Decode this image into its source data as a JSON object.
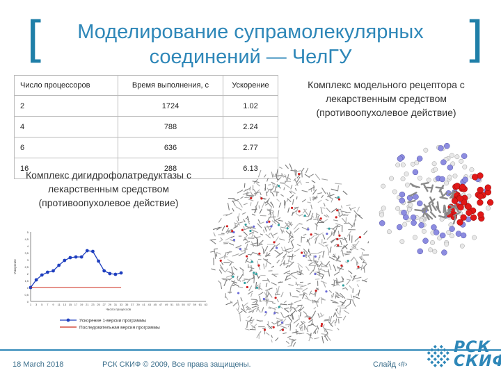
{
  "slide": {
    "title_line1": "Моделирование супрамолекулярных",
    "title_line2": "соединений — Чел",
    "title_line2_suffix": "ГУ",
    "bracket_left": "[",
    "bracket_right": "]"
  },
  "table": {
    "headers": [
      "Число процессоров",
      "Время выполнения, с",
      "Ускорение"
    ],
    "rows": [
      [
        "2",
        "1724",
        "1.02"
      ],
      [
        "4",
        "788",
        "2.24"
      ],
      [
        "6",
        "636",
        "2.77"
      ],
      [
        "16",
        "288",
        "6.13"
      ]
    ]
  },
  "captions": {
    "right": "Комплекс модельного рецептора с лекарственным средством (противоопухолевое действие)",
    "left": "Комплекс дигидрофолатредуктазы с лекарственным средством (противоопухолевое действие)"
  },
  "chart_data": {
    "type": "line",
    "title": "",
    "xlabel": "Число процессов",
    "ylabel": "Ускорение",
    "x": [
      2,
      4,
      6,
      8,
      10,
      12,
      14,
      16,
      18,
      20,
      22,
      24,
      26,
      28,
      30,
      32,
      34,
      36,
      38,
      40,
      42,
      44,
      46,
      48,
      50,
      52,
      54,
      56,
      58,
      60,
      62,
      64
    ],
    "x_ticks": [
      "1",
      "3",
      "5",
      "7",
      "9",
      "11",
      "13",
      "15",
      "17",
      "19",
      "21",
      "23",
      "25",
      "27",
      "29",
      "31",
      "33",
      "35",
      "37",
      "39",
      "41",
      "43",
      "45",
      "47",
      "49",
      "51",
      "53",
      "55",
      "57",
      "59",
      "61",
      "63"
    ],
    "y_ticks": [
      "0",
      "0,5",
      "1",
      "1,5",
      "2",
      "2,5",
      "3",
      "3,5",
      "4",
      "4,5",
      "5"
    ],
    "ylim": [
      0,
      5
    ],
    "series": [
      {
        "name": "Ускорение 1-версии программы",
        "color": "#1f3fbf",
        "points": [
          [
            1,
            1.0
          ],
          [
            3,
            1.55
          ],
          [
            5,
            1.9
          ],
          [
            7,
            2.1
          ],
          [
            9,
            2.2
          ],
          [
            11,
            2.6
          ],
          [
            13,
            2.95
          ],
          [
            15,
            3.15
          ],
          [
            17,
            3.2
          ],
          [
            19,
            3.2
          ],
          [
            21,
            3.65
          ],
          [
            23,
            3.6
          ],
          [
            25,
            2.9
          ],
          [
            27,
            2.2
          ],
          [
            29,
            2.0
          ],
          [
            31,
            1.95
          ],
          [
            33,
            2.05
          ]
        ]
      },
      {
        "name": "Последовательная версия программы",
        "color": "#cc2a1a",
        "points": [
          [
            1,
            1.0
          ],
          [
            33,
            1.0
          ]
        ]
      }
    ],
    "legend_position": "bottom"
  },
  "footer": {
    "date": "18 March 2018",
    "copyright": "РСК СКИФ © 2009, Все права защищены.",
    "slide_label": "Слайд ‹#›"
  },
  "logo": {
    "line1": "РСК",
    "line2": "СКИФ",
    "color": "#2e87b8"
  }
}
